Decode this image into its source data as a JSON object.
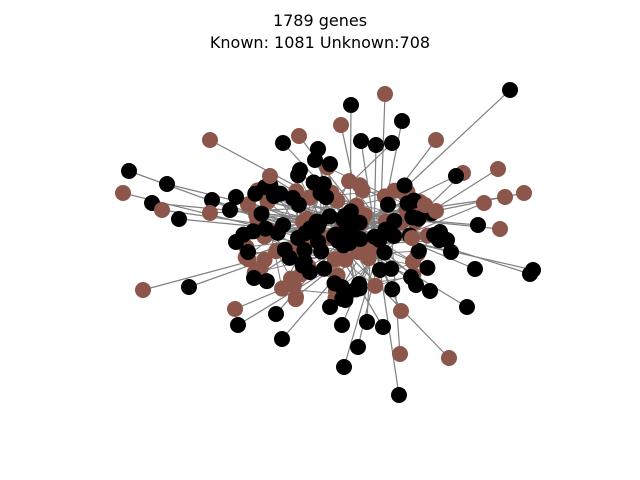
{
  "figure": {
    "title_line_1": "1789 genes",
    "title_line_2": "Known: 1081 Unknown:708"
  },
  "colors": {
    "known_node": "#8c564b",
    "unknown_node": "#000000",
    "edge": "#808080"
  },
  "legend": {
    "known_count": 1081,
    "unknown_count": 708,
    "total_count": 1789
  }
}
